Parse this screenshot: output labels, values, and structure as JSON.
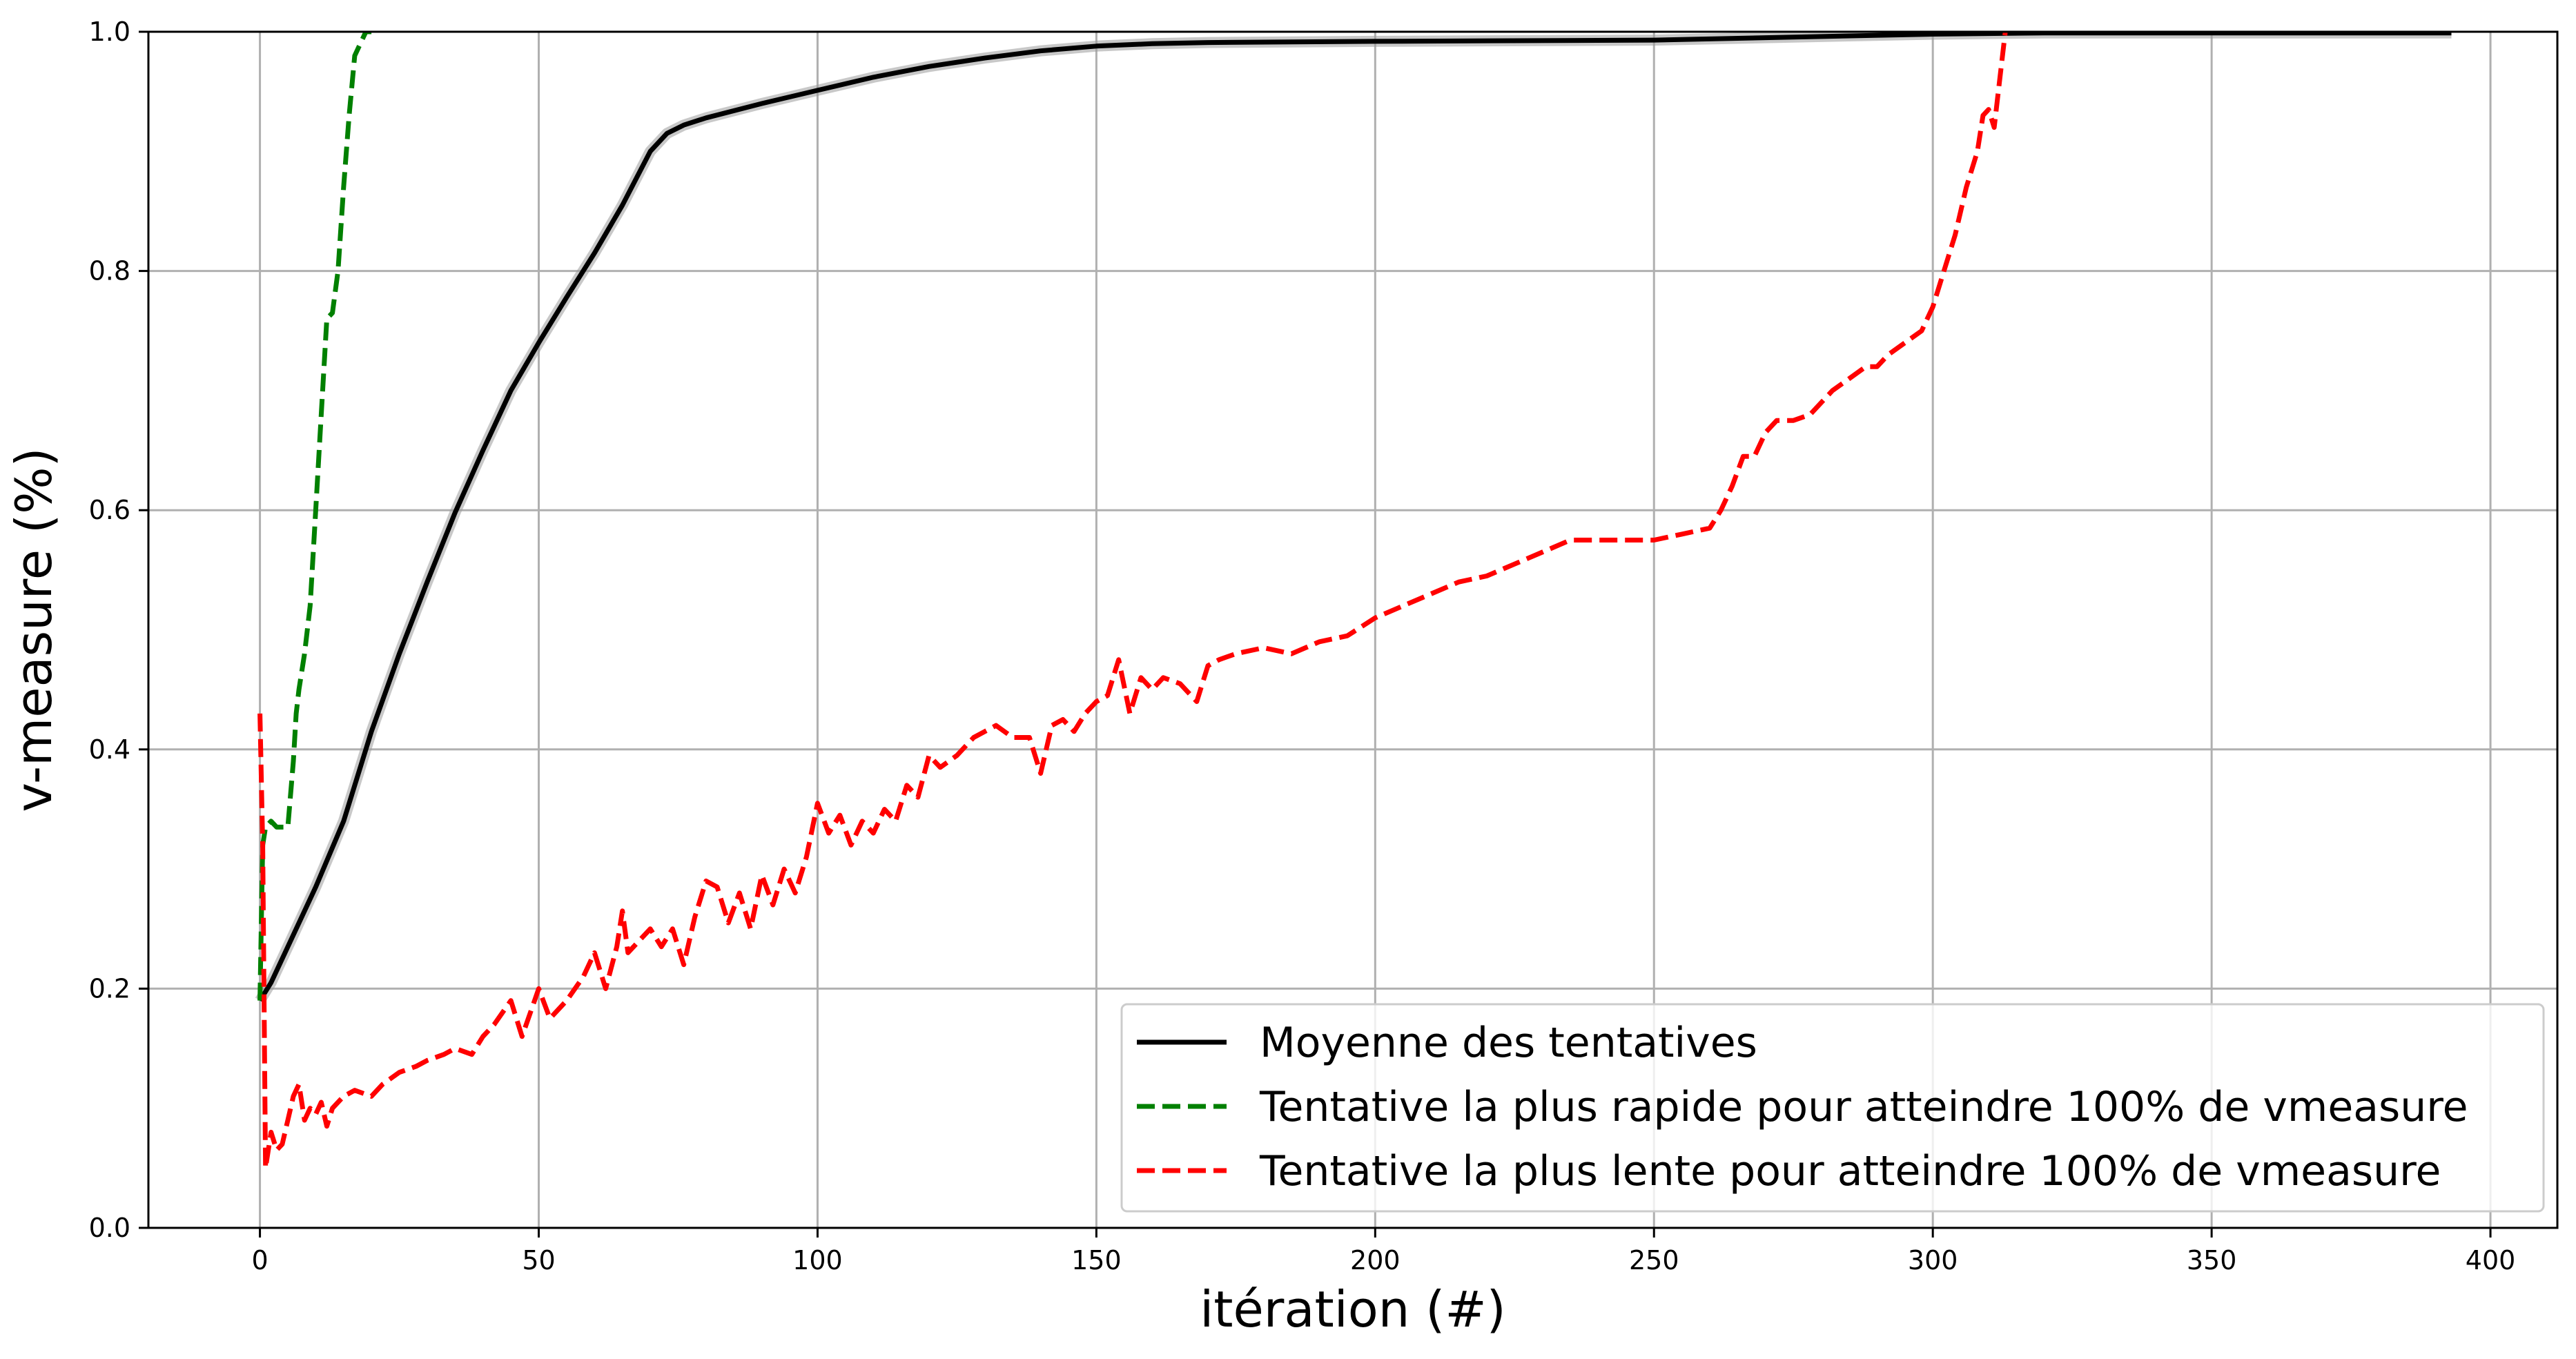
{
  "chart_data": {
    "type": "line",
    "xlabel": "itération (#)",
    "ylabel": "v-measure (%)",
    "xlim": [
      -20,
      412
    ],
    "ylim": [
      0.0,
      1.0
    ],
    "xticks": [
      0,
      50,
      100,
      150,
      200,
      250,
      300,
      350,
      400
    ],
    "yticks": [
      0.0,
      0.2,
      0.4,
      0.6,
      0.8,
      1.0
    ],
    "xtick_labels": [
      "0",
      "50",
      "100",
      "150",
      "200",
      "250",
      "300",
      "350",
      "400"
    ],
    "ytick_labels": [
      "0.0",
      "0.2",
      "0.4",
      "0.6",
      "0.8",
      "1.0"
    ],
    "grid": true,
    "legend_position": "lower-right",
    "series": [
      {
        "name": "Moyenne des tentatives",
        "color": "#000000",
        "style": "solid",
        "x": [
          0,
          2,
          5,
          10,
          15,
          20,
          25,
          30,
          35,
          40,
          45,
          50,
          55,
          60,
          65,
          70,
          73,
          76,
          80,
          90,
          100,
          110,
          120,
          130,
          140,
          150,
          160,
          170,
          200,
          250,
          280,
          300,
          320,
          350,
          393
        ],
        "y": [
          0.19,
          0.205,
          0.235,
          0.285,
          0.34,
          0.415,
          0.48,
          0.54,
          0.598,
          0.65,
          0.7,
          0.74,
          0.778,
          0.815,
          0.855,
          0.9,
          0.915,
          0.922,
          0.928,
          0.94,
          0.951,
          0.962,
          0.971,
          0.978,
          0.984,
          0.988,
          0.99,
          0.991,
          0.992,
          0.993,
          0.996,
          0.998,
          0.999,
          0.999,
          0.999
        ]
      },
      {
        "name": "Tentative la plus rapide pour atteindre 100% de vmeasure",
        "color": "#008000",
        "style": "dashed",
        "x": [
          0,
          0.5,
          1,
          2,
          3,
          4,
          5,
          6,
          6.5,
          7,
          8,
          9,
          10,
          11,
          12,
          13,
          14,
          15,
          16,
          17,
          18,
          19,
          20
        ],
        "y": [
          0.19,
          0.32,
          0.335,
          0.34,
          0.335,
          0.335,
          0.335,
          0.39,
          0.43,
          0.45,
          0.48,
          0.52,
          0.6,
          0.68,
          0.76,
          0.765,
          0.8,
          0.87,
          0.93,
          0.98,
          0.99,
          1.0,
          1.0
        ]
      },
      {
        "name": "Tentative la plus lente pour atteindre 100% de vmeasure",
        "color": "#ff0000",
        "style": "dashed",
        "x": [
          0,
          0.5,
          1,
          2,
          3,
          4,
          5,
          6,
          7,
          8,
          9,
          10,
          11,
          12,
          13,
          15,
          17,
          20,
          22,
          25,
          28,
          30,
          33,
          35,
          38,
          40,
          42,
          45,
          47,
          50,
          52,
          55,
          58,
          60,
          62,
          64,
          65,
          66,
          68,
          70,
          72,
          74,
          76,
          78,
          80,
          82,
          84,
          86,
          88,
          90,
          92,
          94,
          96,
          98,
          100,
          102,
          104,
          106,
          108,
          110,
          112,
          114,
          116,
          118,
          120,
          122,
          125,
          128,
          130,
          132,
          135,
          138,
          140,
          142,
          144,
          146,
          148,
          150,
          152,
          154,
          156,
          158,
          160,
          162,
          165,
          168,
          170,
          172,
          175,
          180,
          185,
          190,
          195,
          200,
          205,
          210,
          215,
          220,
          225,
          230,
          235,
          240,
          245,
          250,
          255,
          260,
          262,
          264,
          266,
          268,
          270,
          272,
          275,
          278,
          280,
          282,
          285,
          288,
          290,
          292,
          295,
          298,
          300,
          302,
          304,
          306,
          308,
          309,
          310,
          311,
          312,
          313
        ],
        "y": [
          0.43,
          0.32,
          0.05,
          0.08,
          0.065,
          0.07,
          0.09,
          0.11,
          0.12,
          0.09,
          0.1,
          0.095,
          0.105,
          0.085,
          0.1,
          0.11,
          0.115,
          0.11,
          0.12,
          0.13,
          0.135,
          0.14,
          0.145,
          0.15,
          0.145,
          0.16,
          0.17,
          0.19,
          0.16,
          0.2,
          0.175,
          0.19,
          0.21,
          0.23,
          0.2,
          0.235,
          0.265,
          0.23,
          0.24,
          0.25,
          0.235,
          0.25,
          0.22,
          0.26,
          0.29,
          0.285,
          0.255,
          0.28,
          0.25,
          0.295,
          0.27,
          0.3,
          0.28,
          0.31,
          0.355,
          0.33,
          0.345,
          0.32,
          0.34,
          0.33,
          0.35,
          0.34,
          0.37,
          0.36,
          0.395,
          0.385,
          0.395,
          0.41,
          0.415,
          0.42,
          0.41,
          0.41,
          0.38,
          0.42,
          0.425,
          0.415,
          0.43,
          0.44,
          0.445,
          0.475,
          0.43,
          0.46,
          0.45,
          0.46,
          0.455,
          0.44,
          0.47,
          0.475,
          0.48,
          0.485,
          0.48,
          0.49,
          0.495,
          0.51,
          0.52,
          0.53,
          0.54,
          0.545,
          0.555,
          0.565,
          0.575,
          0.575,
          0.575,
          0.575,
          0.58,
          0.585,
          0.6,
          0.62,
          0.645,
          0.645,
          0.665,
          0.675,
          0.675,
          0.68,
          0.69,
          0.7,
          0.71,
          0.72,
          0.72,
          0.73,
          0.74,
          0.75,
          0.77,
          0.8,
          0.83,
          0.87,
          0.9,
          0.93,
          0.935,
          0.92,
          0.96,
          1.0
        ]
      }
    ]
  }
}
